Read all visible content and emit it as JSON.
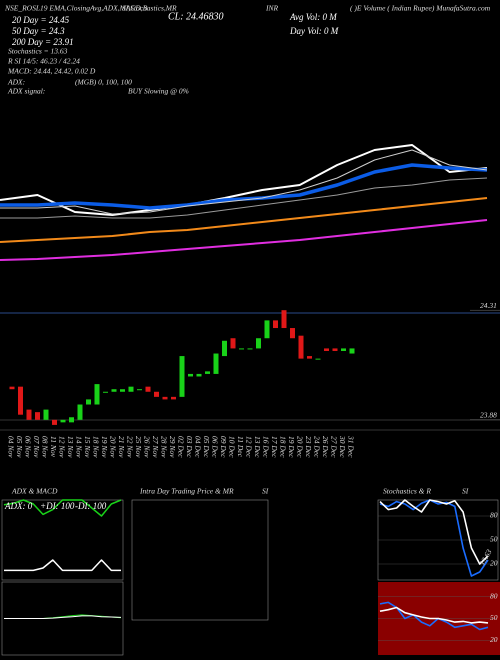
{
  "header": {
    "indicators": "NSE_ROSL19 EMA,ClosingAvg,ADX,MACD,B",
    "indicators2": "SI,Stochastics,MR",
    "close": "CL: 24.46830",
    "exchange": "INR",
    "source": "( )E Volume ( Indian Rupee) MunafaSutra.com",
    "ma20": "20 Day = 24.45",
    "ma50": "50 Day = 24.3",
    "ma200": "200 Day = 23.91",
    "stochastics": "Stochastics = 13.63",
    "rsi": "R          SI 14/5: 46.23 / 42.24",
    "macd": "MACD: 24.44, 24.42, 0.02  D",
    "avg_vol": "Avg Vol: 0  M",
    "day_vol": "Day Vol: 0  M",
    "adx": "ADX:",
    "adx_values": "(MGB) 0, 100, 100",
    "adx_signal": "ADX  signal:",
    "signal": "BUY Slowing @ 0%",
    "intraday_title": "Intra  Day Trading Price  & MR",
    "intraday_subtitle": "SI"
  },
  "chart_data": [
    {
      "type": "line",
      "ylim": [
        0,
        300
      ],
      "series": [
        {
          "color": "#ffffff",
          "values": [
            100,
            105,
            88,
            85,
            90,
            95,
            102,
            110,
            115,
            135,
            150,
            155,
            128,
            132
          ]
        },
        {
          "color": "#0b5ce6",
          "values": [
            95,
            95,
            97,
            95,
            92,
            95,
            100,
            102,
            105,
            115,
            128,
            135,
            132,
            130
          ]
        },
        {
          "color": "#cfcfcf",
          "values": [
            92,
            92,
            94,
            86,
            88,
            94,
            98,
            102,
            110,
            122,
            140,
            150,
            135,
            130
          ]
        },
        {
          "color": "#9a9a9a",
          "values": [
            82,
            82,
            84,
            82,
            82,
            85,
            90,
            95,
            100,
            105,
            112,
            115,
            120,
            122
          ]
        },
        {
          "color": "#f28a1a",
          "values": [
            58,
            60,
            62,
            64,
            68,
            70,
            74,
            78,
            82,
            86,
            90,
            94,
            98,
            102
          ]
        },
        {
          "color": "#e02ee0",
          "values": [
            40,
            41,
            43,
            45,
            48,
            51,
            54,
            57,
            60,
            64,
            68,
            72,
            76,
            80
          ]
        }
      ]
    },
    {
      "type": "candlestick",
      "categories": [
        "04 Nov",
        "05 Nov",
        "06 Nov",
        "07 Nov",
        "08 Nov",
        "11 Nov",
        "12 Nov",
        "13 Nov",
        "14 Nov",
        "15 Nov",
        "18 Nov",
        "19 Nov",
        "20 Nov",
        "21 Nov",
        "22 Nov",
        "25 Nov",
        "26 Nov",
        "27 Nov",
        "28 Nov",
        "29 Nov",
        "02 Dec",
        "03 Dec",
        "04 Dec",
        "05 Dec",
        "06 Dec",
        "09 Dec",
        "10 Dec",
        "11 Dec",
        "12 Dec",
        "13 Dec",
        "16 Dec",
        "17 Dec",
        "18 Dec",
        "19 Dec",
        "20 Dec",
        "23 Dec",
        "24 Dec",
        "26 Dec",
        "27 Dec",
        "30 Dec",
        "31 Dec"
      ],
      "open": [
        24.01,
        24.01,
        23.92,
        23.91,
        23.88,
        23.88,
        23.87,
        23.87,
        23.88,
        23.94,
        23.94,
        23.99,
        23.99,
        23.99,
        23.99,
        24.0,
        24.01,
        23.99,
        23.97,
        23.97,
        23.97,
        24.05,
        24.05,
        24.06,
        24.06,
        24.13,
        24.2,
        24.16,
        24.16,
        24.16,
        24.2,
        24.27,
        24.31,
        24.24,
        24.21,
        24.13,
        24.12,
        24.16,
        24.16,
        24.15,
        24.14
      ],
      "close": [
        24.0,
        23.9,
        23.88,
        23.88,
        23.92,
        23.86,
        23.88,
        23.89,
        23.94,
        23.96,
        24.02,
        23.99,
        24.0,
        24.0,
        24.01,
        24.0,
        23.99,
        23.97,
        23.96,
        23.96,
        24.13,
        24.06,
        24.06,
        24.07,
        24.14,
        24.19,
        24.16,
        24.16,
        24.16,
        24.2,
        24.27,
        24.24,
        24.24,
        24.2,
        24.12,
        24.12,
        24.12,
        24.15,
        24.15,
        24.16,
        24.16
      ],
      "up_color": "#19d219",
      "down_color": "#e01818",
      "ylim": [
        23.84,
        24.35
      ],
      "yticks": [
        {
          "value": 24.31,
          "label": "24.31"
        },
        {
          "value": 23.88,
          "label": "23.88"
        }
      ]
    },
    {
      "type": "line",
      "title": "ADX  & MACD",
      "annotations": [
        "ADX: 0",
        "+DI: 100",
        "-DI: 100"
      ],
      "ylim": [
        0,
        100
      ],
      "series": [
        {
          "color": "#19d219",
          "values": [
            94,
            96,
            100,
            95,
            82,
            88,
            100,
            100,
            100,
            90,
            80,
            95,
            100
          ]
        },
        {
          "color": "#ffffff",
          "values": [
            12,
            12,
            12,
            12,
            15,
            25,
            12,
            12,
            12,
            12,
            25,
            12,
            12
          ]
        }
      ]
    },
    {
      "type": "line",
      "ylim": [
        -1,
        1
      ],
      "series": [
        {
          "color": "#19d219",
          "values": [
            0,
            0,
            0,
            0,
            0,
            0.02,
            0.05,
            0.08,
            0.1,
            0.08,
            0.06,
            0.04,
            0.02
          ]
        },
        {
          "color": "#ffffff",
          "values": [
            0,
            0,
            0,
            0,
            0,
            0.01,
            0.03,
            0.05,
            0.07,
            0.07,
            0.05,
            0.04,
            0.03
          ]
        }
      ]
    },
    {
      "type": "line",
      "title": "Stochastics & R",
      "subtitle": "SI",
      "annotations": [
        "13.63"
      ],
      "ylim": [
        0,
        100
      ],
      "yticks": [
        80,
        50,
        20
      ],
      "series": [
        {
          "color": "#1a6cff",
          "values": [
            95,
            92,
            98,
            95,
            88,
            96,
            100,
            95,
            97,
            92,
            40,
            5,
            10,
            25
          ]
        },
        {
          "color": "#ffffff",
          "values": [
            98,
            88,
            90,
            100,
            92,
            85,
            100,
            98,
            95,
            99,
            85,
            40,
            20,
            30
          ]
        }
      ]
    },
    {
      "type": "line",
      "background": "#8a0000",
      "ylim": [
        0,
        100
      ],
      "yticks": [
        80,
        50,
        20
      ],
      "series": [
        {
          "color": "#1a6cff",
          "values": [
            70,
            72,
            65,
            50,
            55,
            45,
            40,
            50,
            45,
            38,
            40,
            42,
            35,
            38
          ]
        },
        {
          "color": "#ffffff",
          "values": [
            60,
            62,
            65,
            58,
            55,
            52,
            50,
            50,
            48,
            45,
            46,
            44,
            45,
            44
          ]
        }
      ]
    }
  ]
}
